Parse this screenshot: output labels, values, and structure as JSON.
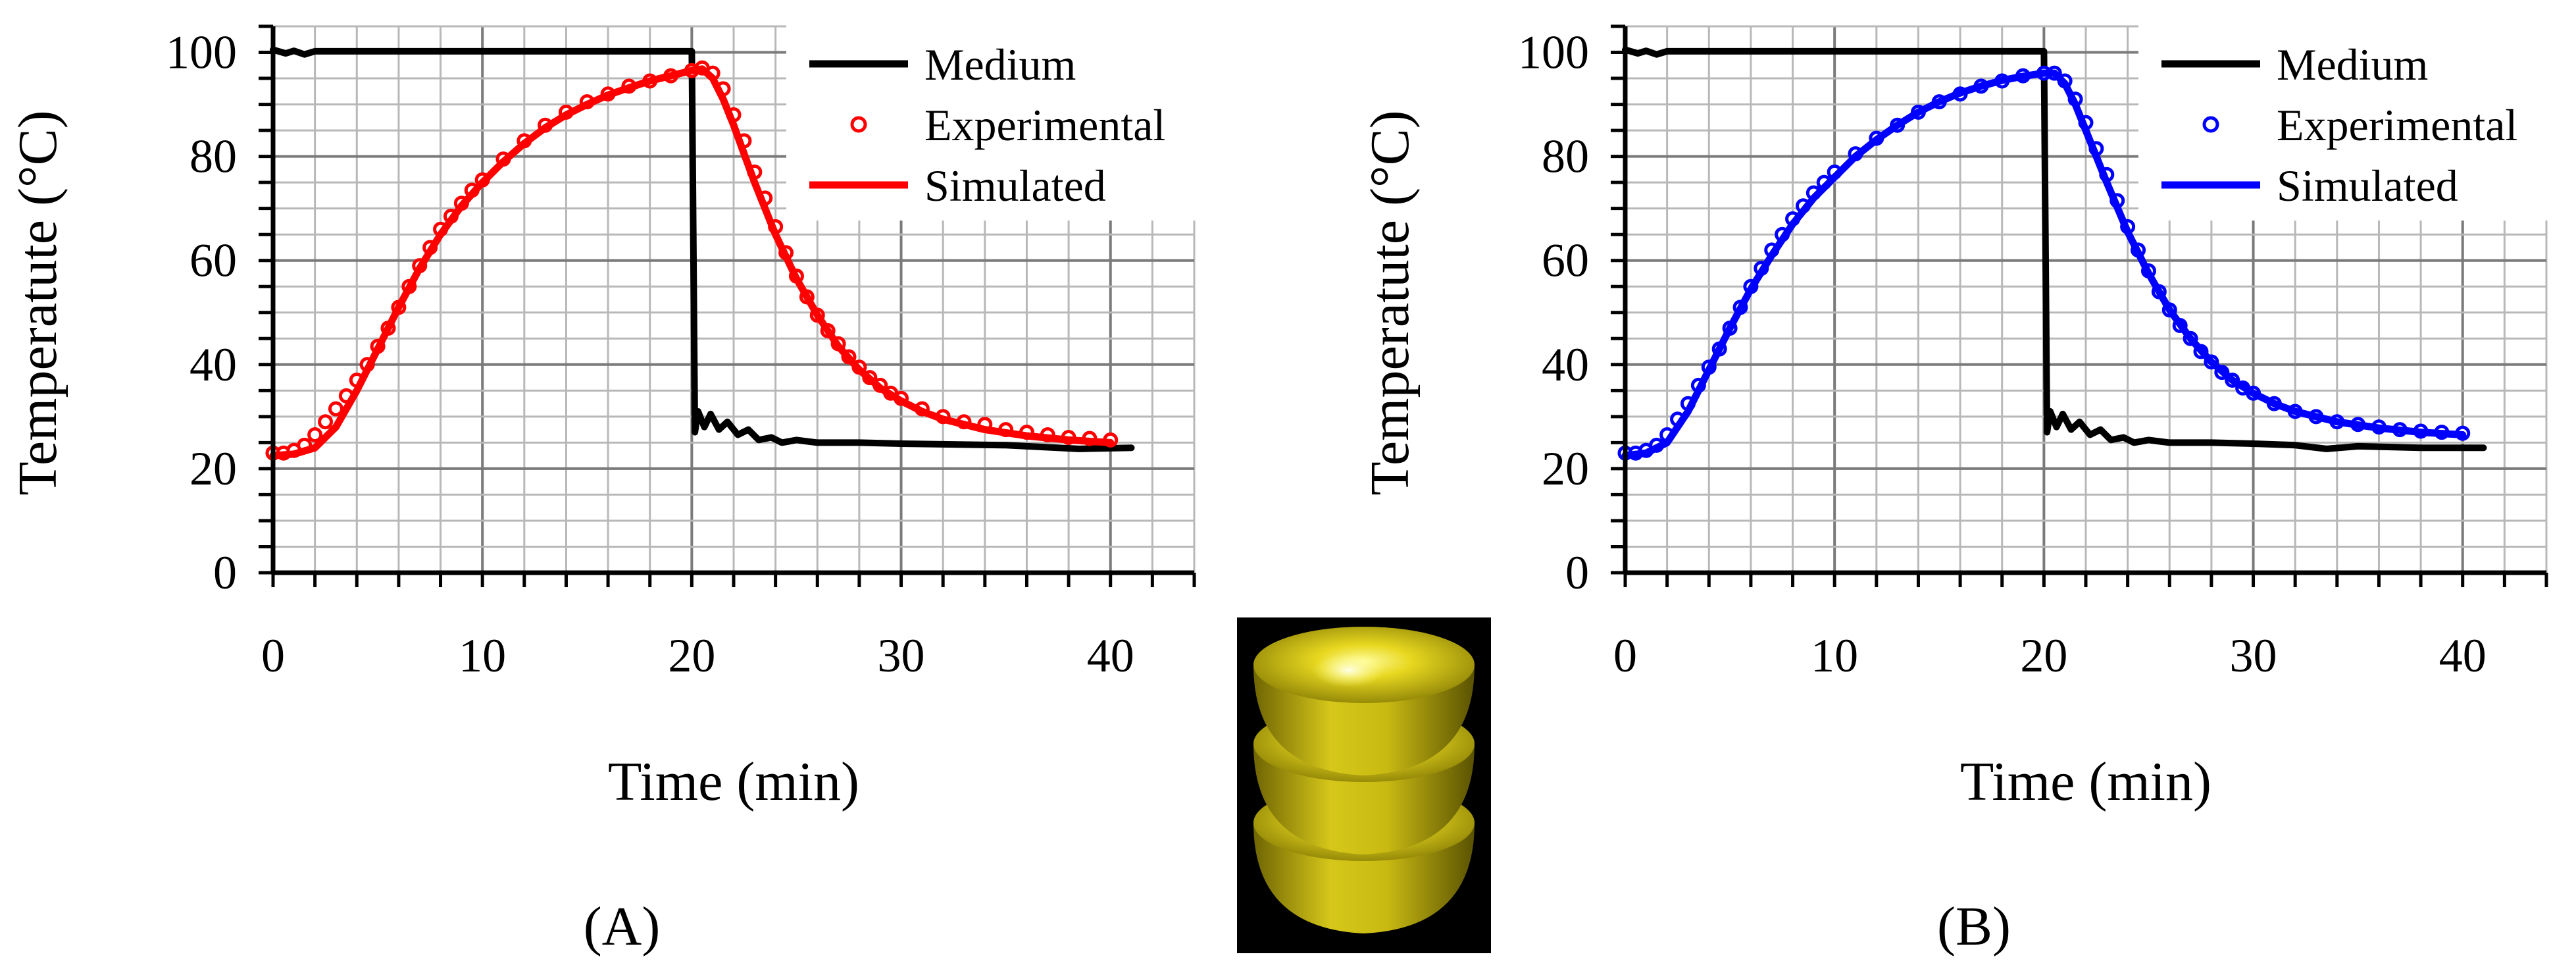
{
  "chart_data": [
    {
      "type": "line",
      "panel_label": "(A)",
      "xlabel": "Time (min)",
      "ylabel": "Temperatute (°C)",
      "xlim": [
        0,
        44
      ],
      "ylim": [
        0,
        105
      ],
      "x_ticks": [
        0,
        10,
        20,
        30,
        40
      ],
      "y_ticks": [
        0,
        20,
        40,
        60,
        80,
        100
      ],
      "grid": true,
      "legend_position": "top-right",
      "series": [
        {
          "name": "Medium",
          "style": "line",
          "color": "#000000",
          "points": [
            [
              0,
              100.5
            ],
            [
              0.6,
              99.8
            ],
            [
              1.0,
              100.3
            ],
            [
              1.5,
              99.6
            ],
            [
              2.0,
              100.2
            ],
            [
              20.0,
              100.2
            ],
            [
              20.15,
              27
            ],
            [
              20.3,
              31
            ],
            [
              20.6,
              28
            ],
            [
              20.9,
              30.5
            ],
            [
              21.3,
              27.5
            ],
            [
              21.7,
              29
            ],
            [
              22.2,
              26.5
            ],
            [
              22.7,
              27.5
            ],
            [
              23.2,
              25.5
            ],
            [
              23.8,
              26
            ],
            [
              24.3,
              25
            ],
            [
              25.0,
              25.5
            ],
            [
              26.0,
              25
            ],
            [
              28,
              25
            ],
            [
              30,
              24.8
            ],
            [
              35,
              24.5
            ],
            [
              38.5,
              23.8
            ],
            [
              41,
              24
            ]
          ]
        },
        {
          "name": "Experimental",
          "style": "markers",
          "color": "#ff0000",
          "points": [
            [
              0,
              23
            ],
            [
              0.5,
              23
            ],
            [
              1,
              23.5
            ],
            [
              1.5,
              24.5
            ],
            [
              2,
              26.5
            ],
            [
              2.5,
              29
            ],
            [
              3,
              31.5
            ],
            [
              3.5,
              34
            ],
            [
              4,
              37
            ],
            [
              4.5,
              40
            ],
            [
              5,
              43.5
            ],
            [
              5.5,
              47
            ],
            [
              6,
              51
            ],
            [
              6.5,
              55
            ],
            [
              7,
              59
            ],
            [
              7.5,
              62.5
            ],
            [
              8,
              66
            ],
            [
              8.5,
              68.5
            ],
            [
              9,
              71
            ],
            [
              9.5,
              73.5
            ],
            [
              10,
              75.5
            ],
            [
              11,
              79.5
            ],
            [
              12,
              83
            ],
            [
              13,
              86
            ],
            [
              14,
              88.5
            ],
            [
              15,
              90.5
            ],
            [
              16,
              92
            ],
            [
              17,
              93.5
            ],
            [
              18,
              94.5
            ],
            [
              19,
              95.5
            ],
            [
              20,
              96.5
            ],
            [
              20.5,
              97
            ],
            [
              21,
              96
            ],
            [
              21.5,
              93
            ],
            [
              22,
              88
            ],
            [
              22.5,
              83
            ],
            [
              23,
              77
            ],
            [
              23.5,
              72
            ],
            [
              24,
              66.5
            ],
            [
              24.5,
              61.5
            ],
            [
              25,
              57
            ],
            [
              25.5,
              53
            ],
            [
              26,
              49.5
            ],
            [
              26.5,
              46.5
            ],
            [
              27,
              44
            ],
            [
              27.5,
              41.5
            ],
            [
              28,
              39.5
            ],
            [
              28.5,
              37.5
            ],
            [
              29,
              36
            ],
            [
              29.5,
              34.5
            ],
            [
              30,
              33.5
            ],
            [
              31,
              31.5
            ],
            [
              32,
              30
            ],
            [
              33,
              29
            ],
            [
              34,
              28.5
            ],
            [
              35,
              27.5
            ],
            [
              36,
              27
            ],
            [
              37,
              26.5
            ],
            [
              38,
              26
            ],
            [
              39,
              25.8
            ],
            [
              40,
              25.5
            ]
          ]
        },
        {
          "name": "Simulated",
          "style": "line",
          "color": "#ff0000",
          "points": [
            [
              0,
              22.5
            ],
            [
              1,
              22.8
            ],
            [
              2,
              24
            ],
            [
              3,
              28
            ],
            [
              4,
              35
            ],
            [
              5,
              43
            ],
            [
              6,
              51
            ],
            [
              7,
              58.5
            ],
            [
              8,
              65
            ],
            [
              9,
              70.5
            ],
            [
              10,
              75
            ],
            [
              11,
              79
            ],
            [
              12,
              82.5
            ],
            [
              13,
              85.5
            ],
            [
              14,
              88
            ],
            [
              15,
              90
            ],
            [
              16,
              91.8
            ],
            [
              17,
              93.2
            ],
            [
              18,
              94.5
            ],
            [
              19,
              95.5
            ],
            [
              20,
              96.5
            ],
            [
              20.5,
              96.8
            ],
            [
              21,
              95
            ],
            [
              21.5,
              91
            ],
            [
              22,
              86
            ],
            [
              22.5,
              80.5
            ],
            [
              23,
              75
            ],
            [
              24,
              65
            ],
            [
              25,
              56.5
            ],
            [
              26,
              49.5
            ],
            [
              27,
              43.5
            ],
            [
              28,
              39
            ],
            [
              29,
              35.5
            ],
            [
              30,
              33
            ],
            [
              31,
              31
            ],
            [
              32,
              29.5
            ],
            [
              34,
              27.5
            ],
            [
              36,
              26.3
            ],
            [
              38,
              25.5
            ],
            [
              40,
              25
            ]
          ]
        }
      ]
    },
    {
      "type": "line",
      "panel_label": "(B)",
      "xlabel": "Time (min)",
      "ylabel": "Temperatute (°C)",
      "xlim": [
        0,
        44
      ],
      "ylim": [
        0,
        105
      ],
      "x_ticks": [
        0,
        10,
        20,
        30,
        40
      ],
      "y_ticks": [
        0,
        20,
        40,
        60,
        80,
        100
      ],
      "grid": true,
      "legend_position": "top-right",
      "series": [
        {
          "name": "Medium",
          "style": "line",
          "color": "#000000",
          "points": [
            [
              0,
              100.5
            ],
            [
              0.6,
              99.8
            ],
            [
              1.0,
              100.3
            ],
            [
              1.5,
              99.6
            ],
            [
              2.0,
              100.2
            ],
            [
              20.0,
              100.2
            ],
            [
              20.15,
              27
            ],
            [
              20.3,
              31
            ],
            [
              20.6,
              28
            ],
            [
              20.9,
              30.5
            ],
            [
              21.3,
              27.5
            ],
            [
              21.7,
              29
            ],
            [
              22.2,
              26.5
            ],
            [
              22.7,
              27.5
            ],
            [
              23.2,
              25.5
            ],
            [
              23.8,
              26
            ],
            [
              24.3,
              25
            ],
            [
              25.0,
              25.5
            ],
            [
              26.0,
              25
            ],
            [
              28,
              25
            ],
            [
              30,
              24.8
            ],
            [
              32,
              24.5
            ],
            [
              33.5,
              23.8
            ],
            [
              35,
              24.3
            ],
            [
              38,
              24
            ],
            [
              41,
              24
            ]
          ]
        },
        {
          "name": "Experimental",
          "style": "markers",
          "color": "#0000ff",
          "points": [
            [
              0,
              23
            ],
            [
              0.5,
              23
            ],
            [
              1,
              23.5
            ],
            [
              1.5,
              24.5
            ],
            [
              2,
              26.5
            ],
            [
              2.5,
              29.5
            ],
            [
              3,
              32.5
            ],
            [
              3.5,
              36
            ],
            [
              4,
              39.5
            ],
            [
              4.5,
              43
            ],
            [
              5,
              47
            ],
            [
              5.5,
              51
            ],
            [
              6,
              55
            ],
            [
              6.5,
              58.5
            ],
            [
              7,
              62
            ],
            [
              7.5,
              65
            ],
            [
              8,
              68
            ],
            [
              8.5,
              70.5
            ],
            [
              9,
              73
            ],
            [
              9.5,
              75
            ],
            [
              10,
              77
            ],
            [
              11,
              80.5
            ],
            [
              12,
              83.5
            ],
            [
              13,
              86
            ],
            [
              14,
              88.5
            ],
            [
              15,
              90.5
            ],
            [
              16,
              92
            ],
            [
              17,
              93.5
            ],
            [
              18,
              94.5
            ],
            [
              19,
              95.5
            ],
            [
              20,
              96
            ],
            [
              20.5,
              96
            ],
            [
              21,
              94.5
            ],
            [
              21.5,
              91
            ],
            [
              22,
              86.5
            ],
            [
              22.5,
              81.5
            ],
            [
              23,
              76.5
            ],
            [
              23.5,
              71.5
            ],
            [
              24,
              66.5
            ],
            [
              24.5,
              62
            ],
            [
              25,
              58
            ],
            [
              25.5,
              54
            ],
            [
              26,
              50.5
            ],
            [
              26.5,
              47.5
            ],
            [
              27,
              45
            ],
            [
              27.5,
              42.5
            ],
            [
              28,
              40.5
            ],
            [
              28.5,
              38.5
            ],
            [
              29,
              37
            ],
            [
              29.5,
              35.5
            ],
            [
              30,
              34.5
            ],
            [
              31,
              32.5
            ],
            [
              32,
              31
            ],
            [
              33,
              30
            ],
            [
              34,
              29
            ],
            [
              35,
              28.5
            ],
            [
              36,
              28
            ],
            [
              37,
              27.5
            ],
            [
              38,
              27.2
            ],
            [
              39,
              27
            ],
            [
              40,
              26.8
            ]
          ]
        },
        {
          "name": "Simulated",
          "style": "line",
          "color": "#0000ff",
          "points": [
            [
              0,
              22.5
            ],
            [
              1,
              23
            ],
            [
              2,
              25
            ],
            [
              3,
              31
            ],
            [
              4,
              39
            ],
            [
              5,
              47
            ],
            [
              6,
              54.5
            ],
            [
              7,
              61
            ],
            [
              8,
              67
            ],
            [
              9,
              72
            ],
            [
              10,
              76
            ],
            [
              11,
              80
            ],
            [
              12,
              83.2
            ],
            [
              13,
              86
            ],
            [
              14,
              88.5
            ],
            [
              15,
              90.5
            ],
            [
              16,
              92.2
            ],
            [
              17,
              93.5
            ],
            [
              18,
              94.6
            ],
            [
              19,
              95.4
            ],
            [
              20,
              96
            ],
            [
              20.5,
              96
            ],
            [
              21,
              94
            ],
            [
              21.5,
              90
            ],
            [
              22,
              85
            ],
            [
              22.5,
              80
            ],
            [
              23,
              75
            ],
            [
              24,
              65.5
            ],
            [
              25,
              57.5
            ],
            [
              26,
              50.5
            ],
            [
              27,
              45
            ],
            [
              28,
              40.5
            ],
            [
              29,
              37
            ],
            [
              30,
              34.5
            ],
            [
              31,
              32.5
            ],
            [
              32,
              31
            ],
            [
              34,
              29
            ],
            [
              36,
              27.8
            ],
            [
              38,
              27
            ],
            [
              40,
              26.5
            ]
          ]
        }
      ]
    }
  ]
}
